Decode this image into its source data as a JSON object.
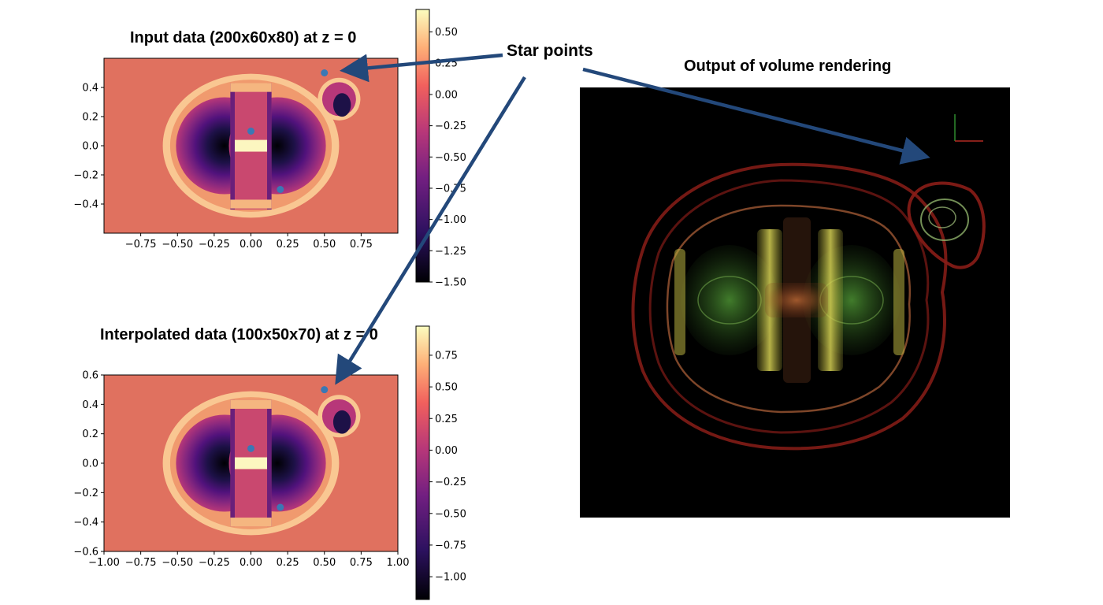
{
  "annotation": "Star points",
  "render_title": "Output of volume rendering",
  "chart_data": [
    {
      "type": "heatmap",
      "title": "Input data (200x60x80) at z = 0",
      "xlim": [
        -1.0,
        1.0
      ],
      "ylim": [
        -0.6,
        0.6
      ],
      "xticks": [
        "−0.75",
        "−0.50",
        "−0.25",
        "0.00",
        "0.25",
        "0.50",
        "0.75"
      ],
      "xtick_values": [
        -0.75,
        -0.5,
        -0.25,
        0.0,
        0.25,
        0.5,
        0.75
      ],
      "yticks": [
        "0.4",
        "0.2",
        "0.0",
        "−0.2",
        "−0.4"
      ],
      "ytick_values": [
        0.4,
        0.2,
        0.0,
        -0.2,
        -0.4
      ],
      "colorbar": {
        "min": -1.5,
        "max": 0.68,
        "ticks": [
          "0.50",
          "0.25",
          "0.00",
          "−0.25",
          "−0.50",
          "−0.75",
          "−1.00",
          "−1.25",
          "−1.50"
        ],
        "tick_values": [
          0.5,
          0.25,
          0.0,
          -0.25,
          -0.5,
          -0.75,
          -1.0,
          -1.25,
          -1.5
        ]
      },
      "star_points": [
        {
          "x": 0.5,
          "y": 0.5
        },
        {
          "x": 0.0,
          "y": 0.1
        },
        {
          "x": 0.2,
          "y": -0.3
        }
      ],
      "colors": {
        "background": "#e0715f",
        "points": "#3a78b5"
      }
    },
    {
      "type": "heatmap",
      "title": "Interpolated data (100x50x70) at z = 0",
      "xlim": [
        -1.0,
        1.0
      ],
      "ylim": [
        -0.6,
        0.6
      ],
      "xticks": [
        "−1.00",
        "−0.75",
        "−0.50",
        "−0.25",
        "0.00",
        "0.25",
        "0.50",
        "0.75",
        "1.00"
      ],
      "xtick_values": [
        -1.0,
        -0.75,
        -0.5,
        -0.25,
        0.0,
        0.25,
        0.5,
        0.75,
        1.0
      ],
      "yticks": [
        "0.6",
        "0.4",
        "0.2",
        "0.0",
        "−0.2",
        "−0.4",
        "−0.6"
      ],
      "ytick_values": [
        0.6,
        0.4,
        0.2,
        0.0,
        -0.2,
        -0.4,
        -0.6
      ],
      "colorbar": {
        "min": -1.18,
        "max": 0.98,
        "ticks": [
          "0.75",
          "0.50",
          "0.25",
          "0.00",
          "−0.25",
          "−0.50",
          "−0.75",
          "−1.00"
        ],
        "tick_values": [
          0.75,
          0.5,
          0.25,
          0.0,
          -0.25,
          -0.5,
          -0.75,
          -1.0
        ]
      },
      "star_points": [
        {
          "x": 0.5,
          "y": 0.5
        },
        {
          "x": 0.0,
          "y": 0.1
        },
        {
          "x": 0.2,
          "y": -0.3
        }
      ],
      "colors": {
        "background": "#e0715f",
        "points": "#3a78b5"
      }
    }
  ],
  "colors": {
    "arrow": "#23487a",
    "render_background": "#000000"
  }
}
